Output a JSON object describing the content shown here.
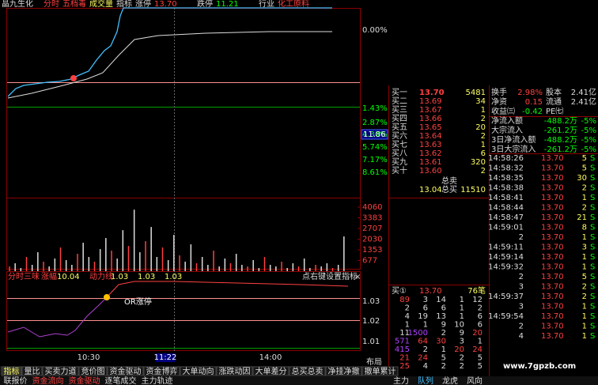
{
  "header": {
    "name": "晶九生化",
    "items": [
      "分时",
      "五档毒",
      "成交量",
      "指标",
      "涨停",
      "13.70",
      "跌停",
      "11.21",
      "行业",
      "化工原料"
    ]
  },
  "chart": {
    "pct_labels": [
      "0.00%",
      "1.43%",
      "2.87%",
      "4.30%",
      "5.74%",
      "7.17%",
      "8.61%"
    ],
    "price_box": "11.86",
    "vol_labels": [
      4060,
      3383,
      2707,
      2030,
      1353,
      677
    ],
    "volumes": [
      300,
      500,
      200,
      900,
      400,
      1200,
      600,
      300,
      800,
      1500,
      700,
      400,
      1100,
      1800,
      900,
      600,
      1400,
      2100,
      1300,
      800,
      2600,
      1600,
      3900,
      1200,
      1900,
      2800,
      900,
      1500,
      700,
      2300,
      1000,
      600,
      1700,
      500,
      900,
      400,
      1300,
      300,
      800,
      500,
      1100,
      400,
      300,
      700,
      200,
      900,
      400,
      300,
      600,
      200,
      500,
      300,
      800,
      200,
      400,
      300,
      500,
      200,
      400,
      2200
    ]
  },
  "indicator": {
    "title": "分时三味",
    "items": [
      "涨幅",
      "10.04",
      "动力线",
      "1.03",
      "1.03",
      "1.03"
    ],
    "hint": "点右键设置指标",
    "close": "×",
    "labels": [
      "1.03",
      "1.02",
      "1.01"
    ],
    "annotation": "OR涨停"
  },
  "time_axis": [
    "10:30",
    "11:22",
    "14:00"
  ],
  "layout_btn": "布局",
  "order_book": {
    "rows": [
      [
        "买一",
        "13.70",
        "5481"
      ],
      [
        "买二",
        "13.69",
        "34"
      ],
      [
        "买三",
        "13.67",
        "1"
      ],
      [
        "买四",
        "13.66",
        "2"
      ],
      [
        "买五",
        "13.65",
        "20"
      ],
      [
        "买六",
        "13.64",
        "2"
      ],
      [
        "买七",
        "13.63",
        "1"
      ],
      [
        "买八",
        "13.62",
        "6"
      ],
      [
        "买九",
        "13.61",
        "320"
      ],
      [
        "买十",
        "13.60",
        "2"
      ]
    ],
    "total_sell_label": "总卖",
    "total_buy_price": "13.04",
    "total_buy_label": "总买",
    "total_buy": "11510"
  },
  "stats": [
    [
      "换手",
      "2.98%",
      "股本",
      "2.41亿"
    ],
    [
      "净资",
      "0.15",
      "流通",
      "2.41亿"
    ],
    [
      "收益㈢",
      "-0.42",
      "PE㈦",
      ""
    ]
  ],
  "flows": [
    [
      "净流入额",
      "-488.2万",
      "-5%"
    ],
    [
      "大宗流入",
      "-261.2万",
      "-5%"
    ],
    [
      "3日净流入额",
      "-488.2万",
      "-5%"
    ],
    [
      "3日大宗流入",
      "-261.2万",
      "-5%"
    ]
  ],
  "ticks": [
    [
      "14:58:26",
      "13.70",
      "5",
      "S"
    ],
    [
      "14:58:32",
      "13.70",
      "5",
      "S"
    ],
    [
      "14:58:35",
      "13.70",
      "30",
      "S"
    ],
    [
      "14:58:38",
      "13.70",
      "2",
      "S"
    ],
    [
      "14:58:41",
      "13.70",
      "1",
      "S"
    ],
    [
      "14:58:44",
      "13.70",
      "2",
      "S"
    ],
    [
      "14:58:47",
      "13.70",
      "21",
      "S"
    ],
    [
      "14:59:01",
      "13.70",
      "8",
      "S"
    ],
    [
      "2",
      "13.70",
      "1",
      "S"
    ],
    [
      "14:59:11",
      "13.70",
      "3",
      "S"
    ],
    [
      "14:59:14",
      "13.70",
      "1",
      "S"
    ],
    [
      "14:59:32",
      "13.70",
      "1",
      "S"
    ],
    [
      "2",
      "13.70",
      "5",
      "S"
    ],
    [
      "3",
      "13.70",
      "2",
      "S"
    ],
    [
      "14:59:37",
      "13.70",
      "2",
      "S"
    ],
    [
      "3",
      "13.70",
      "1",
      "S"
    ],
    [
      "14:59:54",
      "13.70",
      "1",
      "S"
    ],
    [
      "2",
      "13.70",
      "1",
      "S"
    ],
    [
      "4",
      "13.70",
      "1",
      "S"
    ]
  ],
  "queue": {
    "label": "买①",
    "price": "13.70",
    "count": "76笔",
    "rows": [
      [
        "89",
        "3",
        "14",
        "1",
        "12"
      ],
      [
        "2",
        "6",
        "6",
        "1",
        "2"
      ],
      [
        "4",
        "19",
        "13",
        "1",
        "6"
      ],
      [
        "1",
        "1",
        "9",
        "10",
        "6"
      ],
      [
        "11",
        "1500",
        "2",
        "9",
        "20"
      ],
      [
        "571",
        "64",
        "30",
        "3",
        "1"
      ],
      [
        "415",
        "2",
        "1",
        "20",
        "24"
      ],
      [
        "21",
        "24",
        "5",
        "2",
        "5"
      ],
      [
        "25",
        "4",
        "2",
        "2",
        "5"
      ]
    ]
  },
  "tabs": [
    "指标",
    "量比",
    "买卖力道",
    "竞价图",
    "资金驱动",
    "资金博弈",
    "大单动向",
    "涨跌动因",
    "大单差分",
    "总买总卖",
    "净挂净撤",
    "撤单累计"
  ],
  "tabs2": [
    "联报价",
    "资金流向",
    "资金驱动",
    "逐笔成交",
    "主力轨迹"
  ],
  "side_tabs": [
    "主力",
    "队列",
    "龙虎",
    "风向"
  ],
  "watermark": "www.7gpzb.com"
}
